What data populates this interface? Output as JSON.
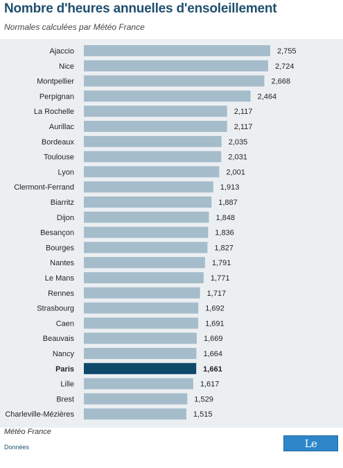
{
  "header": {
    "title": "Nombre d'heures annuelles d'ensoleillement",
    "subtitle": "Normales calculées par Météo France"
  },
  "footer": {
    "source": "Météo France",
    "donnees": "Données",
    "logo_text": "Le Parisien"
  },
  "colors": {
    "bar": "#a5bccb",
    "bar_highlight": "#0d4a6a",
    "plot_background": "#eceff2"
  },
  "chart_data": {
    "type": "bar",
    "orientation": "horizontal",
    "title": "Nombre d'heures annuelles d'ensoleillement",
    "subtitle": "Normales calculées par Météo France",
    "highlight": "Paris",
    "categories": [
      "Ajaccio",
      "Nice",
      "Montpellier",
      "Perpignan",
      "La Rochelle",
      "Aurillac",
      "Bordeaux",
      "Toulouse",
      "Lyon",
      "Clermont-Ferrand",
      "Biarritz",
      "Dijon",
      "Besançon",
      "Bourges",
      "Nantes",
      "Le Mans",
      "Rennes",
      "Strasbourg",
      "Caen",
      "Beauvais",
      "Nancy",
      "Paris",
      "Lille",
      "Brest",
      "Charleville-Mézières"
    ],
    "values": [
      2755,
      2724,
      2668,
      2464,
      2117,
      2117,
      2035,
      2031,
      2001,
      1913,
      1887,
      1848,
      1836,
      1827,
      1791,
      1771,
      1717,
      1692,
      1691,
      1669,
      1664,
      1661,
      1617,
      1529,
      1515
    ],
    "labels": [
      "2,755",
      "2,724",
      "2,668",
      "2,464",
      "2,117",
      "2,117",
      "2,035",
      "2,031",
      "2,001",
      "1,913",
      "1,887",
      "1,848",
      "1,836",
      "1,827",
      "1,791",
      "1,771",
      "1,717",
      "1,692",
      "1,691",
      "1,669",
      "1,664",
      "1,661",
      "1,617",
      "1,529",
      "1,515"
    ],
    "xlim": [
      0,
      2755
    ]
  }
}
